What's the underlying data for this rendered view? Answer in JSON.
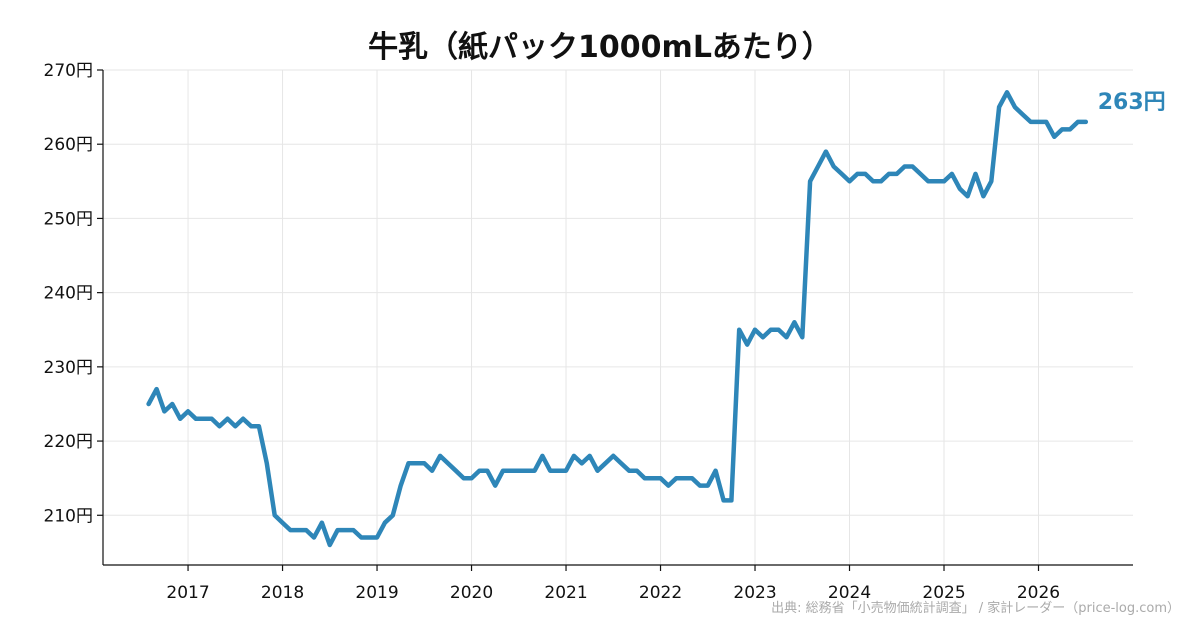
{
  "chart_data": {
    "type": "line",
    "title": "牛乳（紙パック1000mLあたり）",
    "source": "出典: 総務省「小売物価統計調査」 / 家計レーダー（price-log.com）",
    "ylim": [
      203.3,
      270
    ],
    "yticks": [
      210,
      220,
      230,
      240,
      250,
      260,
      270
    ],
    "ytick_labels": [
      "210円",
      "220円",
      "230円",
      "240円",
      "250円",
      "260円",
      "270円"
    ],
    "xlim": [
      2016.1,
      2027.0
    ],
    "xticks": [
      2017,
      2018,
      2019,
      2020,
      2021,
      2022,
      2023,
      2024,
      2025,
      2026
    ],
    "xtick_labels": [
      "2017",
      "2018",
      "2019",
      "2020",
      "2021",
      "2022",
      "2023",
      "2024",
      "2025",
      "2026"
    ],
    "grid": true,
    "line_color": "#2e86b8",
    "end_label": "263円",
    "series": [
      {
        "x": [
          2016.583,
          2016.667,
          2016.75,
          2016.833,
          2016.917,
          2017.0,
          2017.083,
          2017.167,
          2017.25,
          2017.333,
          2017.417,
          2017.5,
          2017.583,
          2017.667,
          2017.75,
          2017.833,
          2017.917,
          2018.0,
          2018.083,
          2018.167,
          2018.25,
          2018.333,
          2018.417,
          2018.5,
          2018.583,
          2018.667,
          2018.75,
          2018.833,
          2018.917,
          2019.0,
          2019.083,
          2019.167,
          2019.25,
          2019.333,
          2019.417,
          2019.5,
          2019.583,
          2019.667,
          2019.75,
          2019.833,
          2019.917,
          2020.0,
          2020.083,
          2020.167,
          2020.25,
          2020.333,
          2020.417,
          2020.5,
          2020.583,
          2020.667,
          2020.75,
          2020.833,
          2020.917,
          2021.0,
          2021.083,
          2021.167,
          2021.25,
          2021.333,
          2021.417,
          2021.5,
          2021.583,
          2021.667,
          2021.75,
          2021.833,
          2021.917,
          2022.0,
          2022.083,
          2022.167,
          2022.25,
          2022.333,
          2022.417,
          2022.5,
          2022.583,
          2022.667,
          2022.75,
          2022.833,
          2022.917,
          2023.0,
          2023.083,
          2023.167,
          2023.25,
          2023.333,
          2023.417,
          2023.5,
          2023.583,
          2023.667,
          2023.75,
          2023.833,
          2023.917,
          2024.0,
          2024.083,
          2024.167,
          2024.25,
          2024.333,
          2024.417,
          2024.5,
          2024.583,
          2024.667,
          2024.75,
          2024.833,
          2024.917,
          2025.0,
          2025.083,
          2025.167,
          2025.25,
          2025.333,
          2025.417,
          2025.5,
          2025.583,
          2025.667,
          2025.75,
          2025.833,
          2025.917,
          2026.0,
          2026.083,
          2026.167,
          2026.25,
          2026.333,
          2026.417,
          2026.5
        ],
        "values": [
          225,
          227,
          224,
          225,
          223,
          224,
          223,
          223,
          223,
          222,
          223,
          222,
          223,
          222,
          222,
          217,
          210,
          209,
          208,
          208,
          208,
          207,
          209,
          206,
          208,
          208,
          208,
          207,
          207,
          207,
          209,
          210,
          214,
          217,
          217,
          217,
          216,
          218,
          217,
          216,
          215,
          215,
          216,
          216,
          214,
          216,
          216,
          216,
          216,
          216,
          218,
          216,
          216,
          216,
          218,
          217,
          218,
          216,
          217,
          218,
          217,
          216,
          216,
          215,
          215,
          215,
          214,
          215,
          215,
          215,
          214,
          214,
          216,
          212,
          212,
          235,
          233,
          235,
          234,
          235,
          235,
          234,
          236,
          234,
          255,
          257,
          259,
          257,
          256,
          255,
          256,
          256,
          255,
          255,
          256,
          256,
          257,
          257,
          256,
          255,
          255,
          255,
          256,
          254,
          253,
          256,
          253,
          255,
          265,
          267,
          265,
          264,
          263,
          263,
          263,
          261,
          262,
          262,
          263,
          263
        ]
      }
    ]
  }
}
